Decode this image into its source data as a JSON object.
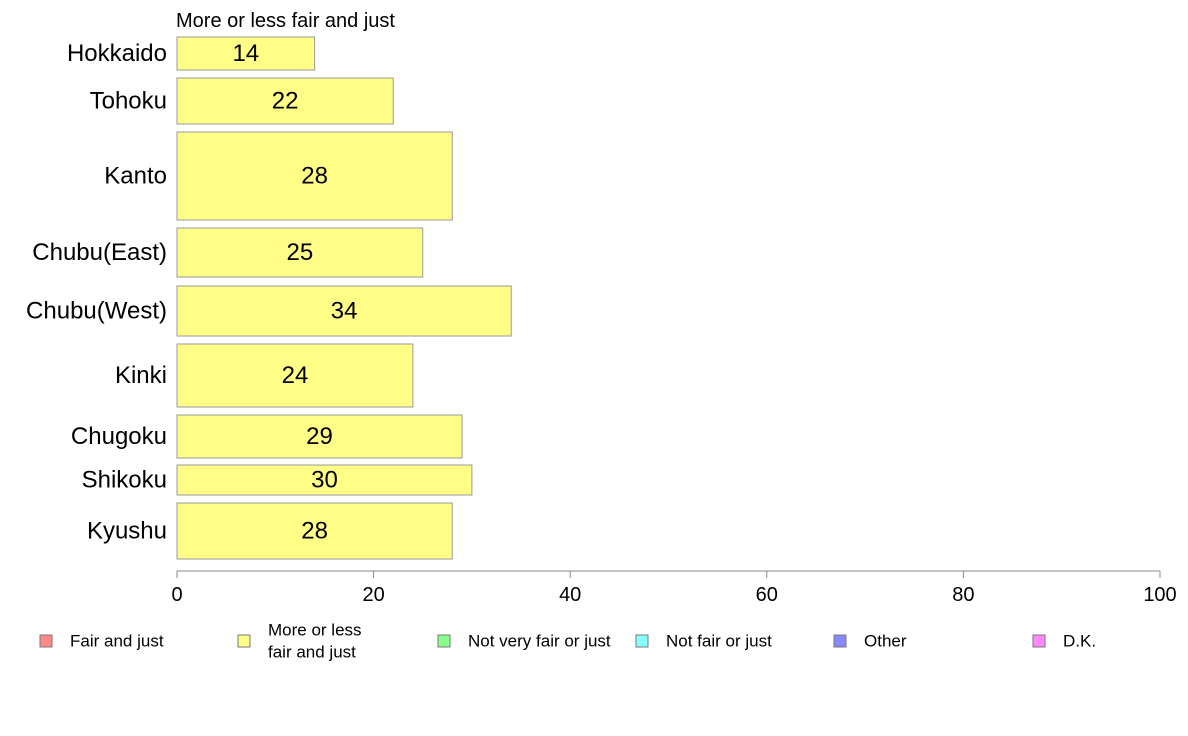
{
  "chart_data": {
    "type": "bar",
    "orientation": "horizontal",
    "title": "More or less fair and just",
    "categories": [
      "Hokkaido",
      "Tohoku",
      "Kanto",
      "Chubu(East)",
      "Chubu(West)",
      "Kinki",
      "Chugoku",
      "Shikoku",
      "Kyushu"
    ],
    "series": [
      {
        "name": "More or less fair and just",
        "color": "#ffff88",
        "values": [
          14,
          22,
          28,
          25,
          34,
          24,
          29,
          30,
          28
        ]
      }
    ],
    "value_labels": [
      "14",
      "22",
      "28",
      "25",
      "34",
      "24",
      "29",
      "30",
      "28"
    ],
    "xlim": [
      0,
      100
    ],
    "xticks": [
      0,
      20,
      40,
      60,
      80,
      100
    ],
    "xtick_labels": [
      "0",
      "20",
      "40",
      "60",
      "80",
      "100"
    ],
    "grid": false,
    "legend_position": "bottom",
    "legend": [
      {
        "label": [
          "Fair and just"
        ],
        "color": "#ff8888"
      },
      {
        "label": [
          "More or less",
          "fair and just"
        ],
        "color": "#ffff88"
      },
      {
        "label": [
          "Not very fair or just"
        ],
        "color": "#88ff88"
      },
      {
        "label": [
          "Not fair or just"
        ],
        "color": "#88ffff"
      },
      {
        "label": [
          "Other"
        ],
        "color": "#8888ff"
      },
      {
        "label": [
          "D.K."
        ],
        "color": "#ff88ff"
      }
    ]
  }
}
